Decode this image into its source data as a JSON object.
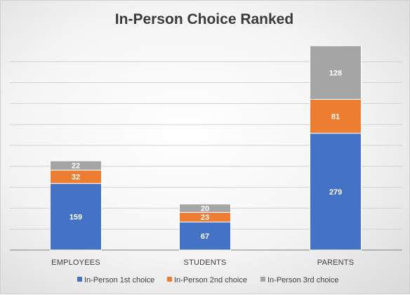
{
  "chart_data": {
    "type": "bar",
    "stacked": true,
    "title": "In-Person Choice Ranked",
    "categories": [
      "EMPLOYEES",
      "STUDENTS",
      "PARENTS"
    ],
    "series": [
      {
        "name": "In-Person 1st choice",
        "values": [
          159,
          67,
          279
        ],
        "color": "#4472c4"
      },
      {
        "name": "In-Person 2nd choice",
        "values": [
          32,
          23,
          81
        ],
        "color": "#ed7d31"
      },
      {
        "name": "In-Person 3rd choice",
        "values": [
          22,
          20,
          128
        ],
        "color": "#a5a5a5"
      }
    ],
    "ylim": [
      0,
      500
    ],
    "ygrid_step": 50,
    "grid": true,
    "legend_position": "bottom",
    "data_labels": true,
    "xlabel": "",
    "ylabel": ""
  }
}
